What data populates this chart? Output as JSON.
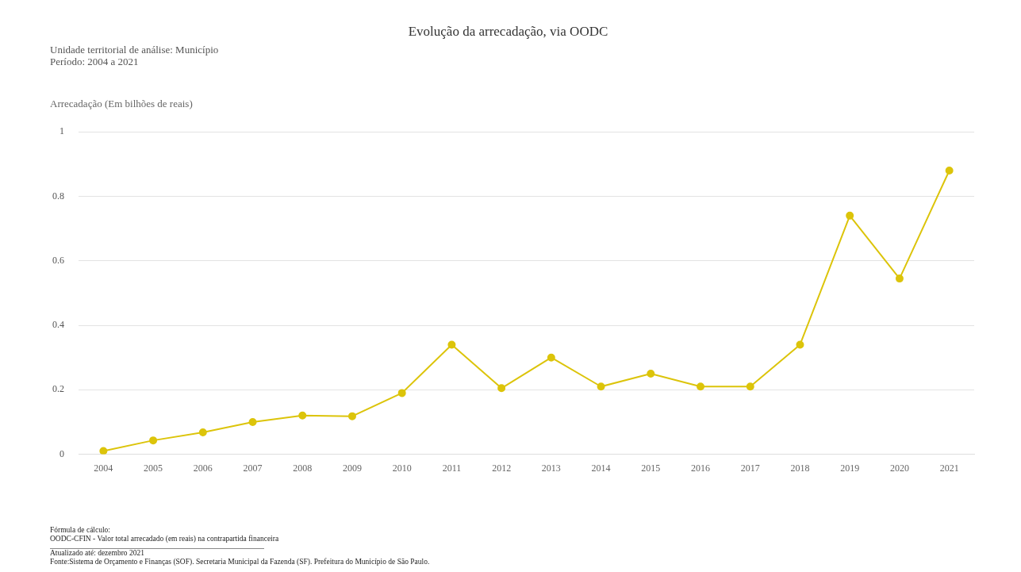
{
  "chart_data": {
    "type": "line",
    "title": "Evolução da arrecadação, via OODC",
    "subtitle": "Unidade territorial de análise: Município\nPeríodo: 2004 a 2021",
    "ylabel": "Arrecadação (Em bilhões de reais)",
    "categories": [
      "2004",
      "2005",
      "2006",
      "2007",
      "2008",
      "2009",
      "2010",
      "2011",
      "2012",
      "2013",
      "2014",
      "2015",
      "2016",
      "2017",
      "2018",
      "2019",
      "2020",
      "2021"
    ],
    "series": [
      {
        "color": "#dcc40a",
        "values": [
          0.01,
          0.043,
          0.068,
          0.1,
          0.12,
          0.118,
          0.19,
          0.34,
          0.205,
          0.3,
          0.21,
          0.25,
          0.21,
          0.21,
          0.34,
          0.74,
          0.545,
          0.88
        ]
      }
    ],
    "ylim": [
      0,
      1
    ],
    "yticks": [
      0,
      0.2,
      0.4,
      0.6,
      0.8,
      1
    ],
    "grid": "y",
    "marker": "circle",
    "line_style": "solid",
    "legend": false,
    "annotations": [
      "Fórmula de cálculo:",
      "OODC-CFIN - Valor total arrecadado (em reais) na contrapartida financeira",
      "Atualizado até: dezembro 2021",
      "Fonte:Sistema de Orçamento e Finanças (SOF). Secretaria Municipal da Fazenda (SF). Prefeitura do Município de São Paulo."
    ]
  }
}
